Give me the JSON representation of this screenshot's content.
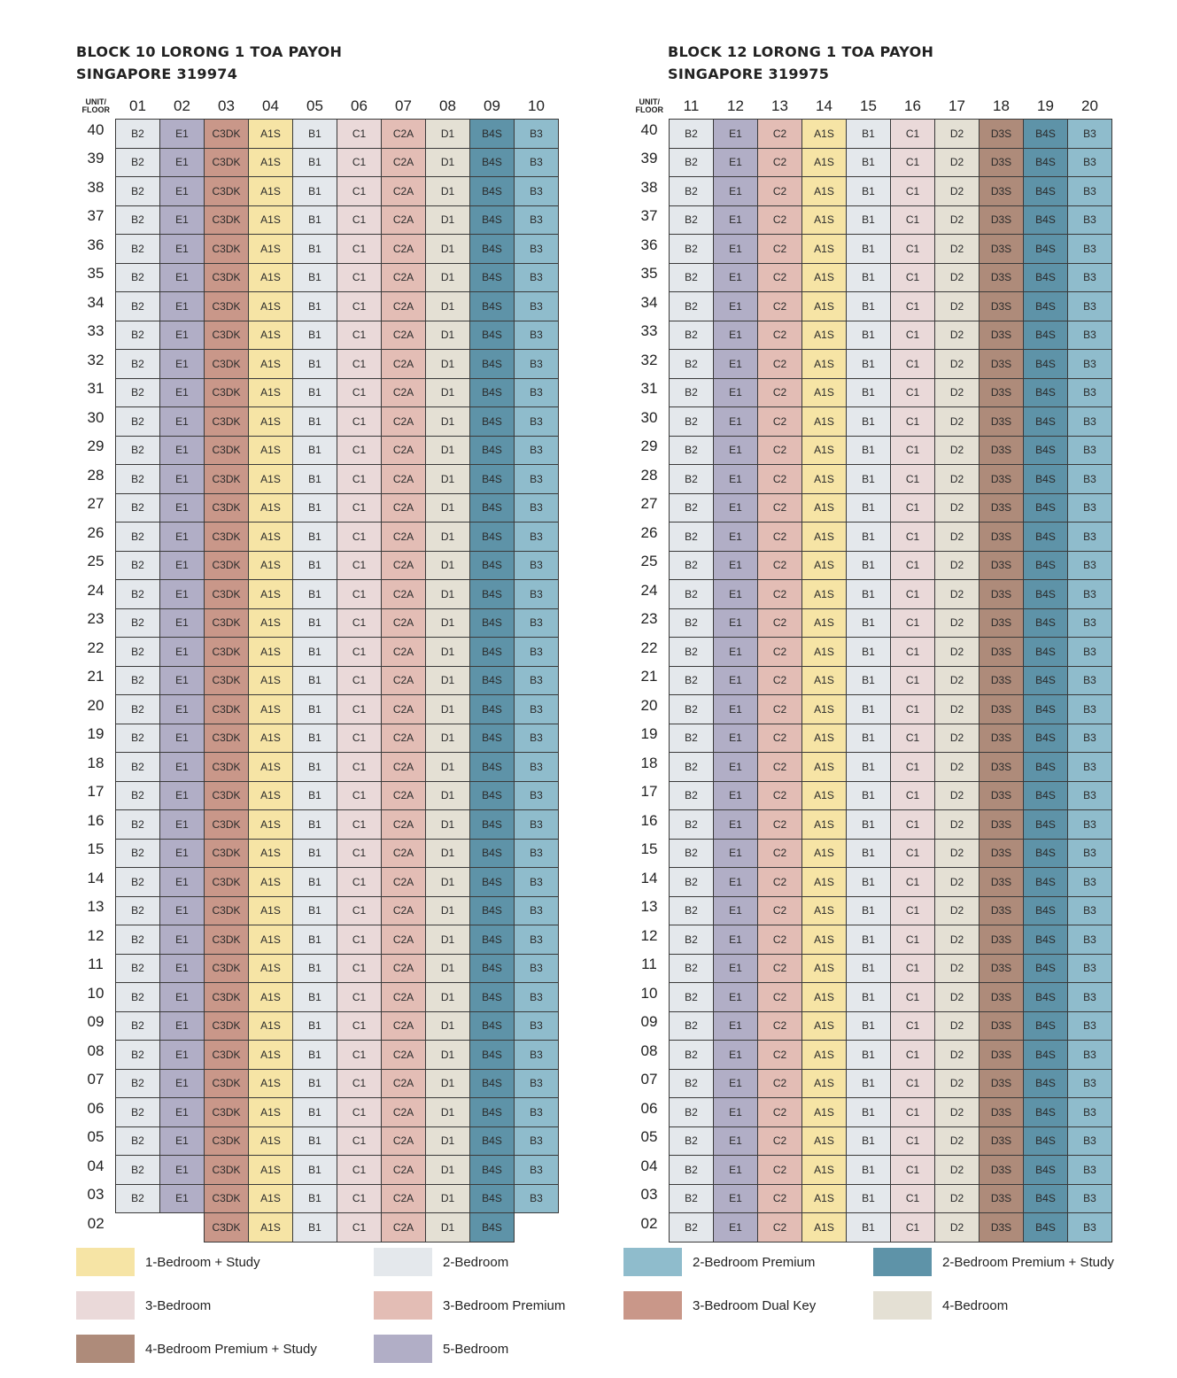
{
  "header_label": "UNIT/\nFLOOR",
  "unit_types": {
    "A1S": "#f6e4a5",
    "B1": "#e4e8ec",
    "B2": "#e4e8ec",
    "B3": "#8fbccc",
    "B4S": "#5e93a8",
    "C1": "#ead9d9",
    "C2": "#e3bdb5",
    "C2A": "#e3bdb5",
    "C3DK": "#c99789",
    "D1": "#e4e0d4",
    "D2": "#e4e0d4",
    "D3S": "#ae8b7a",
    "E1": "#b1aec6"
  },
  "blocks": [
    {
      "title_line1": "BLOCK 10 LORONG 1 TOA PAYOH",
      "title_line2": "SINGAPORE 319974",
      "units": [
        "01",
        "02",
        "03",
        "04",
        "05",
        "06",
        "07",
        "08",
        "09",
        "10"
      ],
      "stack_types": [
        "B2",
        "E1",
        "C3DK",
        "A1S",
        "B1",
        "C1",
        "C2A",
        "D1",
        "B4S",
        "B3"
      ],
      "floor_02_types": [
        "",
        "",
        "C3DK",
        "A1S",
        "B1",
        "C1",
        "C2A",
        "D1",
        "B4S",
        ""
      ]
    },
    {
      "title_line1": "BLOCK 12 LORONG 1 TOA PAYOH",
      "title_line2": "SINGAPORE 319975",
      "units": [
        "11",
        "12",
        "13",
        "14",
        "15",
        "16",
        "17",
        "18",
        "19",
        "20"
      ],
      "stack_types": [
        "B2",
        "E1",
        "C2",
        "A1S",
        "B1",
        "C1",
        "D2",
        "D3S",
        "B4S",
        "B3"
      ],
      "floor_02_types": [
        "B2",
        "E1",
        "C2",
        "A1S",
        "B1",
        "C1",
        "D2",
        "D3S",
        "B4S",
        "B3"
      ]
    }
  ],
  "floors": [
    "40",
    "39",
    "38",
    "37",
    "36",
    "35",
    "34",
    "33",
    "32",
    "31",
    "30",
    "29",
    "28",
    "27",
    "26",
    "25",
    "24",
    "23",
    "22",
    "21",
    "20",
    "19",
    "18",
    "17",
    "16",
    "15",
    "14",
    "13",
    "12",
    "11",
    "10",
    "09",
    "08",
    "07",
    "06",
    "05",
    "04",
    "03",
    "02"
  ],
  "legend": [
    {
      "label": "1-Bedroom + Study",
      "color": "#f6e4a5"
    },
    {
      "label": "2-Bedroom",
      "color": "#e4e8ec"
    },
    {
      "label": "2-Bedroom Premium",
      "color": "#8fbccc"
    },
    {
      "label": "2-Bedroom Premium + Study",
      "color": "#5e93a8"
    },
    {
      "label": "3-Bedroom",
      "color": "#ead9d9"
    },
    {
      "label": "3-Bedroom Premium",
      "color": "#e3bdb5"
    },
    {
      "label": "3-Bedroom Dual Key",
      "color": "#c99789"
    },
    {
      "label": "4-Bedroom",
      "color": "#e4e0d4"
    },
    {
      "label": "4-Bedroom Premium + Study",
      "color": "#ae8b7a"
    },
    {
      "label": "5-Bedroom",
      "color": "#b1aec6"
    }
  ]
}
